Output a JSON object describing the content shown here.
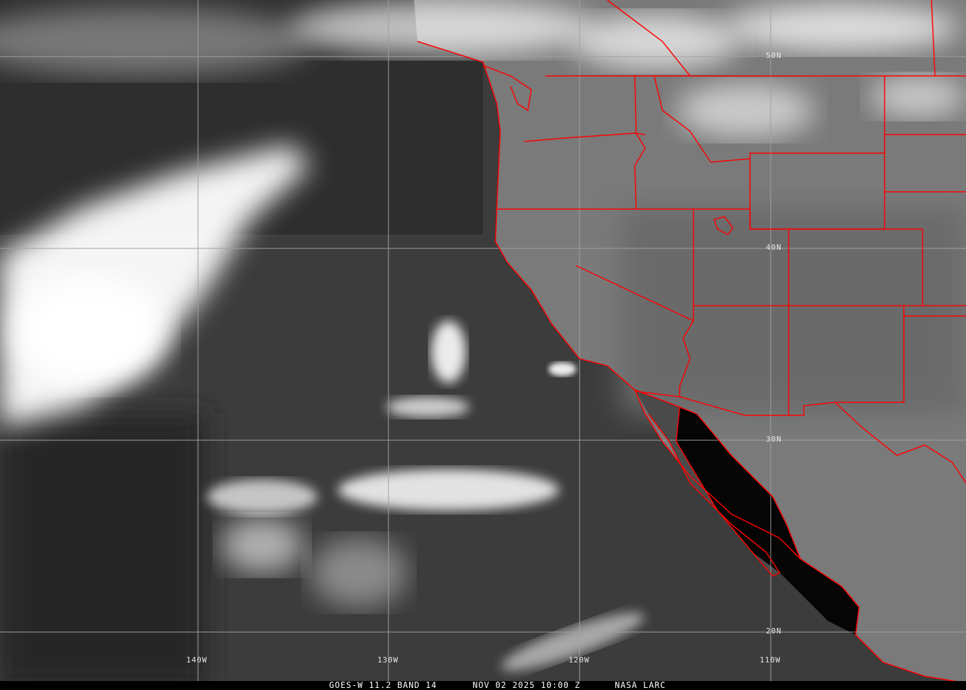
{
  "image": {
    "type": "satellite infrared imagery with political boundaries",
    "colors": {
      "boundaries": "#ff0000",
      "grid": "#a0a0a0",
      "caption_text": "#ffffff",
      "caption_bg": "#000000"
    }
  },
  "grid_labels": {
    "latitudes": [
      "50N",
      "40N",
      "30N",
      "20N"
    ],
    "longitudes": [
      "140W",
      "130W",
      "120W",
      "110W"
    ]
  },
  "caption": {
    "satellite": "GOES-W 11.2 BAND 14",
    "datetime": "NOV 02 2025 10:00 Z",
    "source": "NASA LARC"
  }
}
